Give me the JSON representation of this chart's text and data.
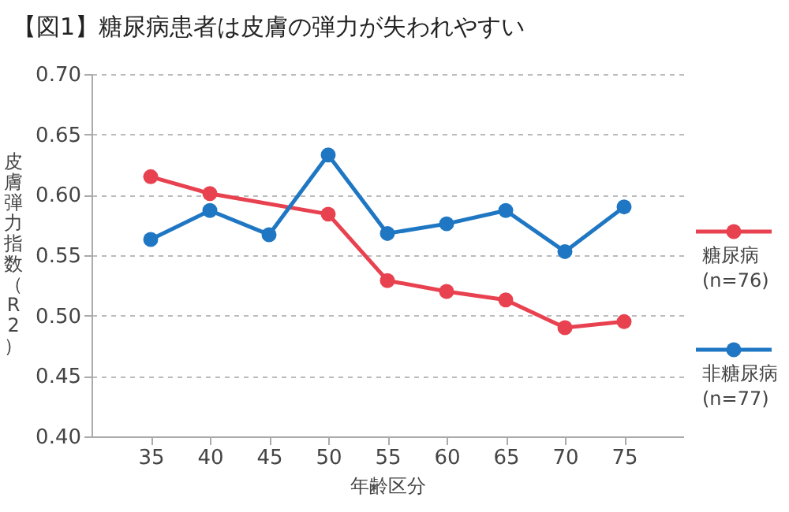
{
  "chart_data": {
    "type": "line",
    "title": "【図1】糖尿病患者は皮膚の弾力が失われやすい",
    "xlabel": "年齢区分",
    "ylabel": "皮膚弾力指数（R2）",
    "xlim": [
      30,
      80
    ],
    "xticks": [
      35,
      40,
      45,
      50,
      55,
      60,
      65,
      70,
      75
    ],
    "ylim": [
      0.4,
      0.7
    ],
    "yticks": [
      {
        "value": 0.4,
        "label": "0.40"
      },
      0.45,
      {
        "value": 0.5,
        "label": "0.50"
      },
      0.55,
      {
        "value": 0.6,
        "label": "0.60"
      },
      0.65,
      {
        "value": 0.7,
        "label": "0.70"
      }
    ],
    "grid": "y",
    "legend": "right",
    "marker": "circle",
    "line_style": "solid",
    "series": [
      {
        "name": "糖尿病 (n=76)",
        "color": "#e8414f",
        "x": [
          35,
          40,
          50,
          55,
          60,
          65,
          70,
          75
        ],
        "values": [
          0.615,
          0.601,
          0.584,
          0.529,
          0.52,
          0.513,
          0.49,
          0.495
        ]
      },
      {
        "name": "非糖尿病 (n=77)",
        "color": "#1f77c4",
        "x": [
          35,
          40,
          45,
          50,
          55,
          60,
          65,
          70,
          75
        ],
        "values": [
          0.563,
          0.587,
          0.567,
          0.633,
          0.568,
          0.576,
          0.587,
          0.553,
          0.59
        ]
      }
    ]
  }
}
